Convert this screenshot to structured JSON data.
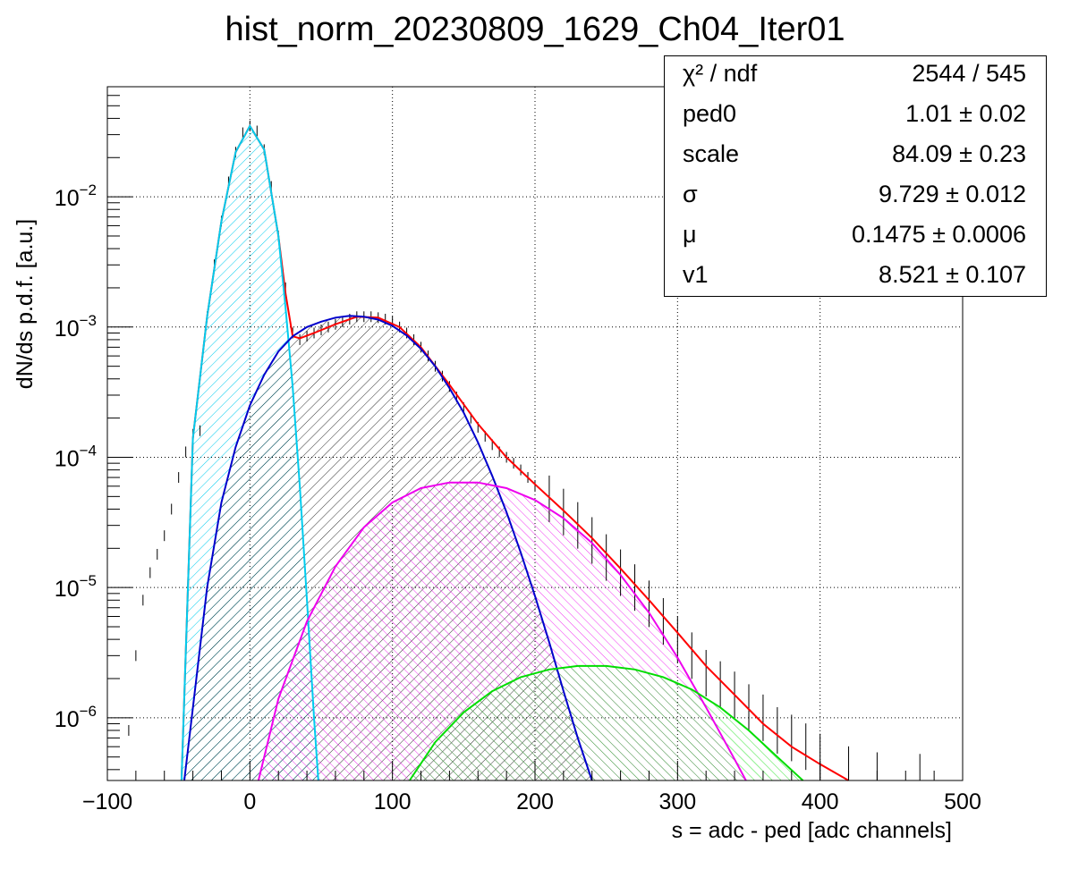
{
  "chart_data": {
    "type": "histogram",
    "title": "hist_norm_20230809_1629_Ch04_Iter01",
    "xlabel": "s = adc - ped [adc channels]",
    "ylabel": "dN/ds p.d.f. [a.u.]",
    "xlim": [
      -100,
      500
    ],
    "ylim": [
      3.3e-07,
      0.07
    ],
    "ylog": true,
    "grid": true,
    "x_ticks": [
      -100,
      0,
      100,
      200,
      300,
      400,
      500
    ],
    "x_tick_labels": [
      "−100",
      "0",
      "100",
      "200",
      "300",
      "400",
      "500"
    ],
    "y_ticks": [
      1e-06,
      1e-05,
      0.0001,
      0.001,
      0.01
    ],
    "y_tick_labels": [
      {
        "base": "10",
        "exp": "−6"
      },
      {
        "base": "10",
        "exp": "−5"
      },
      {
        "base": "10",
        "exp": "−4"
      },
      {
        "base": "10",
        "exp": "−3"
      },
      {
        "base": "10",
        "exp": "−2"
      }
    ],
    "histogram_points": [
      [
        -85,
        8e-07
      ],
      [
        -80,
        3e-06
      ],
      [
        -75,
        8e-06
      ],
      [
        -70,
        1.3e-05
      ],
      [
        -65,
        1.8e-05
      ],
      [
        -60,
        2.5e-05
      ],
      [
        -55,
        4e-05
      ],
      [
        -50,
        7e-05
      ],
      [
        -45,
        0.00011
      ],
      [
        -40,
        0.00015
      ],
      [
        -35,
        0.00016
      ],
      [
        -30,
        0.0012
      ],
      [
        -25,
        0.003
      ],
      [
        -20,
        0.0065
      ],
      [
        -15,
        0.013
      ],
      [
        -10,
        0.022
      ],
      [
        -5,
        0.031
      ],
      [
        0,
        0.035
      ],
      [
        5,
        0.032
      ],
      [
        10,
        0.023
      ],
      [
        15,
        0.012
      ],
      [
        20,
        0.005
      ],
      [
        25,
        0.002
      ],
      [
        30,
        0.0009
      ],
      [
        35,
        0.0008
      ],
      [
        40,
        0.00085
      ],
      [
        45,
        0.0009
      ],
      [
        50,
        0.00095
      ],
      [
        55,
        0.001
      ],
      [
        60,
        0.00105
      ],
      [
        65,
        0.0011
      ],
      [
        70,
        0.00115
      ],
      [
        75,
        0.0012
      ],
      [
        80,
        0.0012
      ],
      [
        85,
        0.0012
      ],
      [
        90,
        0.00118
      ],
      [
        95,
        0.00115
      ],
      [
        100,
        0.0011
      ],
      [
        105,
        0.001
      ],
      [
        110,
        0.0009
      ],
      [
        115,
        0.0008
      ],
      [
        120,
        0.0007
      ],
      [
        125,
        0.0006
      ],
      [
        130,
        0.0005
      ],
      [
        135,
        0.00042
      ],
      [
        140,
        0.00035
      ],
      [
        145,
        0.00029
      ],
      [
        150,
        0.00024
      ],
      [
        155,
        0.0002
      ],
      [
        160,
        0.00017
      ],
      [
        165,
        0.000145
      ],
      [
        170,
        0.000125
      ],
      [
        175,
        0.00011
      ],
      [
        180,
        0.0001
      ],
      [
        185,
        9e-05
      ],
      [
        190,
        8e-05
      ],
      [
        195,
        7e-05
      ],
      [
        200,
        6e-05
      ],
      [
        210,
        4.8e-05
      ],
      [
        220,
        3.8e-05
      ],
      [
        230,
        3e-05
      ],
      [
        240,
        2.3e-05
      ],
      [
        250,
        1.7e-05
      ],
      [
        260,
        1.3e-05
      ],
      [
        270,
        1e-05
      ],
      [
        280,
        7.5e-06
      ],
      [
        290,
        5.5e-06
      ],
      [
        300,
        4e-06
      ],
      [
        310,
        3e-06
      ],
      [
        320,
        2.2e-06
      ],
      [
        330,
        1.8e-06
      ],
      [
        340,
        1.5e-06
      ],
      [
        350,
        1.2e-06
      ],
      [
        360,
        1e-06
      ],
      [
        370,
        8e-07
      ],
      [
        380,
        7e-07
      ],
      [
        390,
        6e-07
      ],
      [
        400,
        5e-07
      ],
      [
        420,
        4e-07
      ],
      [
        440,
        3.6e-07
      ],
      [
        470,
        3.5e-07
      ]
    ],
    "series": [
      {
        "color": "#ff0000",
        "points": [
          [
            -48,
            3.3e-07
          ],
          [
            -40,
            0.00014
          ],
          [
            -30,
            0.0012
          ],
          [
            -20,
            0.0065
          ],
          [
            -10,
            0.022
          ],
          [
            0,
            0.035
          ],
          [
            10,
            0.023
          ],
          [
            20,
            0.005
          ],
          [
            25,
            0.0018
          ],
          [
            30,
            0.00085
          ],
          [
            35,
            0.00082
          ],
          [
            45,
            0.0009
          ],
          [
            60,
            0.00105
          ],
          [
            75,
            0.0012
          ],
          [
            90,
            0.00118
          ],
          [
            105,
            0.001
          ],
          [
            120,
            0.0007
          ],
          [
            140,
            0.00036
          ],
          [
            160,
            0.00018
          ],
          [
            180,
            0.0001
          ],
          [
            200,
            6.2e-05
          ],
          [
            220,
            3.9e-05
          ],
          [
            240,
            2.4e-05
          ],
          [
            260,
            1.4e-05
          ],
          [
            280,
            8e-06
          ],
          [
            300,
            4.5e-06
          ],
          [
            320,
            2.5e-06
          ],
          [
            340,
            1.5e-06
          ],
          [
            360,
            9e-07
          ],
          [
            380,
            6e-07
          ],
          [
            400,
            4.4e-07
          ],
          [
            420,
            3.3e-07
          ]
        ]
      },
      {
        "color": "#00ccee",
        "points": [
          [
            -48,
            3.3e-07
          ],
          [
            -40,
            0.00014
          ],
          [
            -30,
            0.0012
          ],
          [
            -20,
            0.0065
          ],
          [
            -10,
            0.022
          ],
          [
            0,
            0.035
          ],
          [
            10,
            0.023
          ],
          [
            20,
            0.005
          ],
          [
            25,
            0.0014
          ],
          [
            30,
            0.00035
          ],
          [
            35,
            6e-05
          ],
          [
            40,
            8e-06
          ],
          [
            45,
            1e-06
          ],
          [
            48,
            3.3e-07
          ]
        ]
      },
      {
        "color": "#0000cc",
        "points": [
          [
            -46,
            3.3e-07
          ],
          [
            -30,
            1e-05
          ],
          [
            -20,
            4.5e-05
          ],
          [
            -10,
            0.00012
          ],
          [
            0,
            0.00025
          ],
          [
            10,
            0.00043
          ],
          [
            20,
            0.00065
          ],
          [
            30,
            0.00085
          ],
          [
            40,
            0.001
          ],
          [
            50,
            0.0011
          ],
          [
            60,
            0.00118
          ],
          [
            70,
            0.00122
          ],
          [
            80,
            0.0012
          ],
          [
            90,
            0.00114
          ],
          [
            100,
            0.00102
          ],
          [
            110,
            0.00086
          ],
          [
            120,
            0.00068
          ],
          [
            130,
            0.0005
          ],
          [
            140,
            0.00034
          ],
          [
            150,
            0.00022
          ],
          [
            160,
            0.00013
          ],
          [
            170,
            7.2e-05
          ],
          [
            180,
            3.8e-05
          ],
          [
            190,
            1.85e-05
          ],
          [
            200,
            8.6e-06
          ],
          [
            210,
            3.8e-06
          ],
          [
            220,
            1.6e-06
          ],
          [
            230,
            7e-07
          ],
          [
            240,
            3.3e-07
          ]
        ]
      },
      {
        "color": "#ee00ee",
        "points": [
          [
            6,
            3.3e-07
          ],
          [
            20,
            1.4e-06
          ],
          [
            40,
            5.5e-06
          ],
          [
            60,
            1.45e-05
          ],
          [
            80,
            2.9e-05
          ],
          [
            100,
            4.5e-05
          ],
          [
            120,
            5.8e-05
          ],
          [
            140,
            6.4e-05
          ],
          [
            160,
            6.4e-05
          ],
          [
            180,
            5.8e-05
          ],
          [
            200,
            4.7e-05
          ],
          [
            220,
            3.4e-05
          ],
          [
            240,
            2.2e-05
          ],
          [
            260,
            1.25e-05
          ],
          [
            280,
            6.4e-06
          ],
          [
            300,
            2.9e-06
          ],
          [
            320,
            1.2e-06
          ],
          [
            340,
            4.8e-07
          ],
          [
            348,
            3.3e-07
          ]
        ]
      },
      {
        "color": "#00dd00",
        "points": [
          [
            112,
            3.3e-07
          ],
          [
            130,
            6.5e-07
          ],
          [
            150,
            1.1e-06
          ],
          [
            170,
            1.6e-06
          ],
          [
            190,
            2.05e-06
          ],
          [
            210,
            2.35e-06
          ],
          [
            230,
            2.5e-06
          ],
          [
            250,
            2.5e-06
          ],
          [
            270,
            2.35e-06
          ],
          [
            290,
            2.05e-06
          ],
          [
            310,
            1.65e-06
          ],
          [
            330,
            1.2e-06
          ],
          [
            350,
            8e-07
          ],
          [
            370,
            5e-07
          ],
          [
            388,
            3.3e-07
          ]
        ]
      }
    ],
    "stats": [
      {
        "name": "χ² / ndf",
        "value": "2544 / 545"
      },
      {
        "name": "ped0",
        "value": "1.01 ± 0.02"
      },
      {
        "name": "scale",
        "value": "84.09 ± 0.23"
      },
      {
        "name": "σ",
        "value": "9.729 ± 0.012"
      },
      {
        "name": "μ",
        "value": "0.1475 ± 0.0006"
      },
      {
        "name": "v1",
        "value": "8.521 ± 0.107"
      }
    ]
  }
}
